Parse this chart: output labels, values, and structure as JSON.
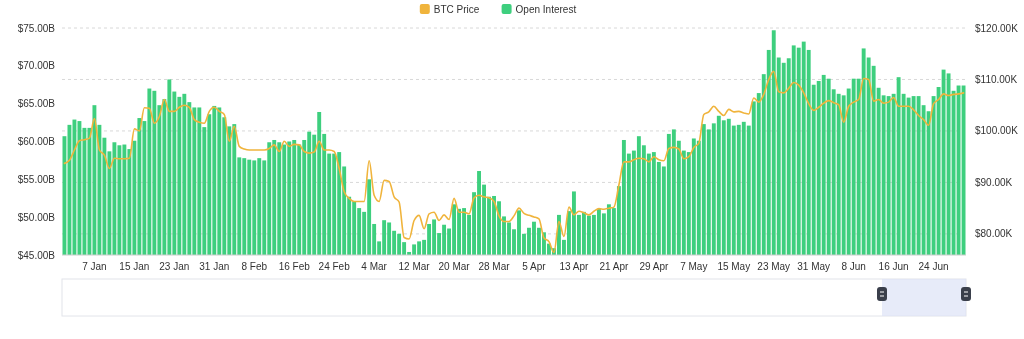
{
  "chart_data": {
    "type": "bar",
    "legend": "top",
    "grid": true,
    "categories": [
      null,
      null,
      null,
      null,
      null,
      null,
      "7 Jan",
      null,
      null,
      null,
      null,
      null,
      null,
      null,
      "15 Jan",
      null,
      null,
      null,
      null,
      null,
      null,
      null,
      "23 Jan",
      null,
      null,
      null,
      null,
      null,
      null,
      null,
      "31 Jan",
      null,
      null,
      null,
      null,
      null,
      null,
      null,
      "8 Feb",
      null,
      null,
      null,
      null,
      null,
      null,
      null,
      "16 Feb",
      null,
      null,
      null,
      null,
      null,
      null,
      null,
      "24 Feb",
      null,
      null,
      null,
      null,
      null,
      null,
      null,
      "4 Mar",
      null,
      null,
      null,
      null,
      null,
      null,
      null,
      "12 Mar",
      null,
      null,
      null,
      null,
      null,
      null,
      null,
      "20 Mar",
      null,
      null,
      null,
      null,
      null,
      null,
      null,
      "28 Mar",
      null,
      null,
      null,
      null,
      null,
      null,
      null,
      "5 Apr",
      null,
      null,
      null,
      null,
      null,
      null,
      null,
      "13 Apr",
      null,
      null,
      null,
      null,
      null,
      null,
      null,
      "21 Apr",
      null,
      null,
      null,
      null,
      null,
      null,
      null,
      "29 Apr",
      null,
      null,
      null,
      null,
      null,
      null,
      null,
      "7 May",
      null,
      null,
      null,
      null,
      null,
      null,
      null,
      "15 May",
      null,
      null,
      null,
      null,
      null,
      null,
      null,
      "23 May",
      null,
      null,
      null,
      null,
      null,
      null,
      null,
      "31 May",
      null,
      null,
      null,
      null,
      null,
      null,
      null,
      "8 Jun",
      null,
      null,
      null,
      null,
      null,
      null,
      null,
      "16 Jun",
      null,
      null,
      null,
      null,
      null,
      null,
      null,
      "24 Jun",
      null,
      null,
      null,
      null,
      null,
      null
    ],
    "ylim": [
      45,
      75
    ],
    "yticks": [
      {
        "value": 45,
        "label": "$45.00B"
      },
      {
        "value": 50,
        "label": "$50.00B"
      },
      {
        "value": 55,
        "label": "$55.00B"
      },
      {
        "value": 60,
        "label": "$60.00B"
      },
      {
        "value": 65,
        "label": "$65.00B"
      },
      {
        "value": 70,
        "label": "$70.00B"
      },
      {
        "value": 75,
        "label": "$75.00B"
      }
    ],
    "y2lim": [
      75.9,
      120
    ],
    "y2ticks": [
      {
        "value": 80,
        "label": "$80.00K"
      },
      {
        "value": 90,
        "label": "$90.00K"
      },
      {
        "value": 100,
        "label": "$100.00K"
      },
      {
        "value": 110,
        "label": "$110.00K"
      },
      {
        "value": 120,
        "label": "$120.00K"
      }
    ],
    "series": [
      {
        "name": "BTC Price",
        "type": "line",
        "axis": "y2",
        "color": "#f0b43c",
        "marker": "none",
        "line_style": "solid",
        "values": [
          93.7,
          94.3,
          96.3,
          98.1,
          98.3,
          98.6,
          102.4,
          96.3,
          95.3,
          92.7,
          94.7,
          94.6,
          94.6,
          94.7,
          100.4,
          100.0,
          104.5,
          104.4,
          101.5,
          102.8,
          106.1,
          103.8,
          103.8,
          104.6,
          105.0,
          104.6,
          102.2,
          101.7,
          101.5,
          103.8,
          104.6,
          103.8,
          103.2,
          98.0,
          100.9,
          97.0,
          96.5,
          96.3,
          96.3,
          96.3,
          96.3,
          96.6,
          97.3,
          96.0,
          98.0,
          97.0,
          97.4,
          97.3,
          96.0,
          95.7,
          95.9,
          98.0,
          96.3,
          96.3,
          96.0,
          92.7,
          88.2,
          86.9,
          86.3,
          86.3,
          86.3,
          94.2,
          87.5,
          86.3,
          90.4,
          90.2,
          87.2,
          86.2,
          79.3,
          79.0,
          82.6,
          83.6,
          81.0,
          83.9,
          84.2,
          82.6,
          83.7,
          82.8,
          86.9,
          84.2,
          84.2,
          83.9,
          87.0,
          87.5,
          87.2,
          87.0,
          86.3,
          83.5,
          82.4,
          82.4,
          83.5,
          85.0,
          84.0,
          83.6,
          83.3,
          82.9,
          79.2,
          78.5,
          76.4,
          82.4,
          79.5,
          85.2,
          83.7,
          84.4,
          84.1,
          83.7,
          84.4,
          84.9,
          84.8,
          85.0,
          85.2,
          89.5,
          94.0,
          94.0,
          94.4,
          94.7,
          94.6,
          94.0,
          95.0,
          94.4,
          94.2,
          96.6,
          96.8,
          96.5,
          94.6,
          95.0,
          96.8,
          97.6,
          103.2,
          103.7,
          104.8,
          103.8,
          103.0,
          104.2,
          103.7,
          103.8,
          103.5,
          103.3,
          106.4,
          105.6,
          107.1,
          110.0,
          111.6,
          107.6,
          107.4,
          108.3,
          109.4,
          108.9,
          107.4,
          105.3,
          104.0,
          104.6,
          105.4,
          105.9,
          105.5,
          105.1,
          101.7,
          104.8,
          105.6,
          106.1,
          110.2,
          110.0,
          105.8,
          106.1,
          105.4,
          105.6,
          106.5,
          104.8,
          104.8,
          104.8,
          104.1,
          103.0,
          102.2,
          101.1,
          105.3,
          106.1,
          107.2,
          106.9,
          107.1,
          107.2,
          107.4
        ]
      },
      {
        "name": "Open Interest",
        "color": "#3ecf7e",
        "values": [
          60.7,
          62.2,
          62.9,
          62.7,
          61.8,
          61.8,
          64.8,
          62.2,
          60.5,
          58.7,
          59.9,
          59.5,
          59.6,
          59.0,
          60.1,
          63.1,
          62.7,
          67.0,
          66.7,
          64.8,
          65.6,
          68.2,
          66.6,
          65.9,
          66.3,
          65.2,
          64.5,
          64.5,
          61.9,
          63.6,
          64.7,
          64.5,
          63.2,
          62.0,
          62.3,
          57.9,
          57.8,
          57.6,
          57.5,
          57.8,
          57.5,
          59.9,
          60.2,
          59.9,
          59.6,
          60.0,
          60.2,
          59.6,
          60.2,
          61.3,
          60.9,
          63.9,
          61.0,
          58.4,
          58.4,
          58.6,
          56.7,
          52.7,
          52.1,
          51.2,
          50.7,
          55.0,
          49.1,
          46.8,
          49.6,
          49.3,
          48.2,
          47.8,
          46.7,
          45.4,
          46.4,
          46.8,
          47.0,
          49.1,
          49.7,
          47.9,
          49.0,
          48.5,
          51.7,
          51.1,
          51.2,
          50.3,
          53.3,
          56.1,
          54.3,
          52.7,
          52.8,
          52.1,
          50.1,
          49.3,
          48.4,
          50.9,
          47.8,
          48.6,
          49.4,
          48.6,
          48.0,
          46.5,
          45.9,
          50.3,
          47.0,
          50.8,
          53.4,
          50.3,
          50.7,
          50.2,
          50.3,
          51.1,
          50.5,
          51.7,
          51.2,
          54.1,
          60.2,
          58.4,
          58.8,
          60.7,
          59.5,
          58.4,
          58.6,
          57.3,
          56.7,
          61.0,
          61.6,
          60.1,
          58.8,
          58.6,
          60.4,
          60.1,
          62.3,
          61.6,
          62.4,
          63.4,
          62.8,
          63.0,
          62.1,
          62.2,
          62.6,
          62.1,
          65.3,
          66.4,
          68.9,
          72.1,
          74.7,
          71.1,
          70.4,
          71.0,
          72.7,
          72.4,
          73.2,
          72.1,
          67.5,
          68.0,
          68.8,
          68.3,
          66.9,
          66.3,
          66.1,
          67.0,
          68.3,
          68.3,
          72.3,
          71.1,
          70.0,
          67.1,
          66.1,
          66.0,
          66.3,
          68.5,
          66.3,
          65.8,
          66.0,
          66.0,
          64.8,
          64.0,
          66.0,
          67.2,
          69.5,
          69.0,
          66.7,
          67.4,
          67.4
        ]
      }
    ]
  }
}
